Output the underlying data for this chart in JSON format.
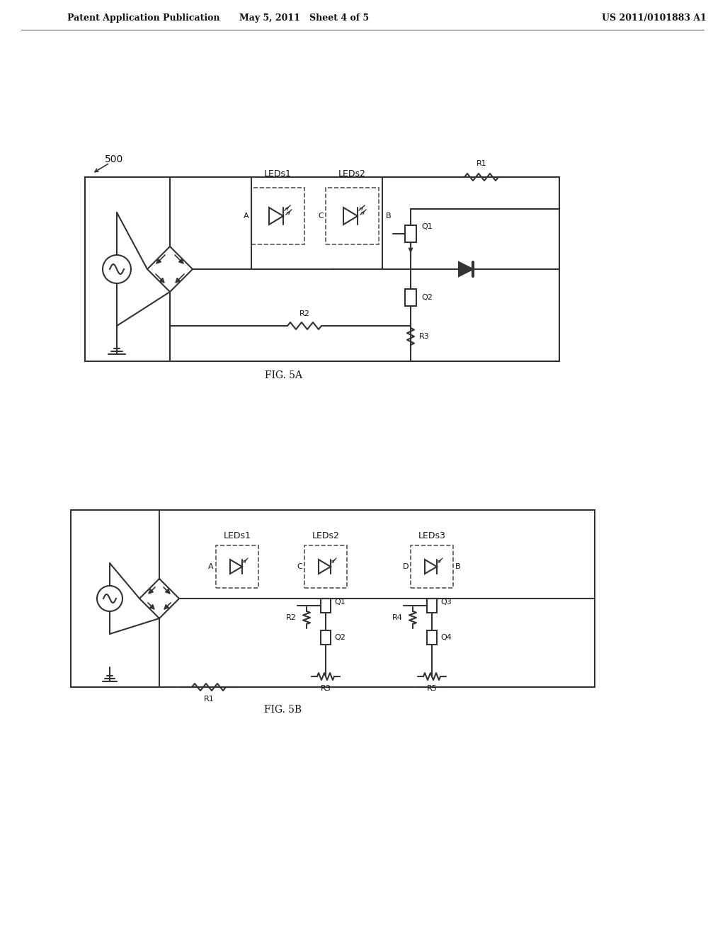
{
  "bg_color": "#ffffff",
  "header_left": "Patent Application Publication",
  "header_center": "May 5, 2011   Sheet 4 of 5",
  "header_right": "US 2011/0101883 A1",
  "fig5a_label": "500",
  "fig5a_caption": "FIG. 5A",
  "fig5b_caption": "FIG. 5B",
  "line_color": "#333333",
  "line_width": 1.5,
  "text_color": "#111111"
}
